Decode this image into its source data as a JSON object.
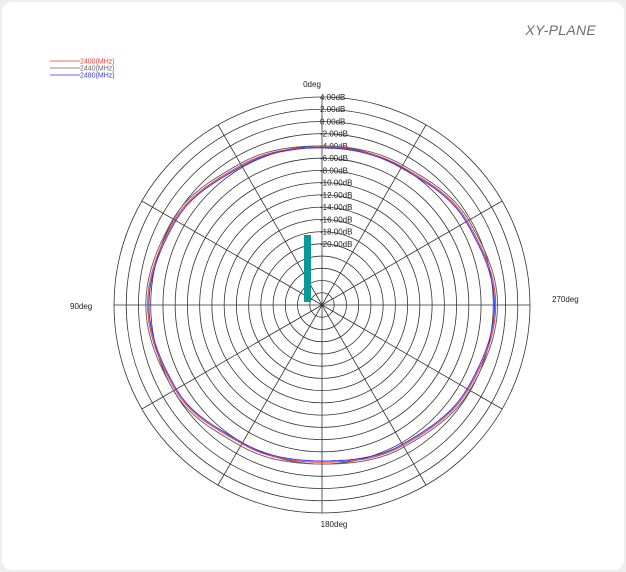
{
  "plane_title": "XY-PLANE",
  "chart_data": {
    "type": "polar",
    "r_unit": "dB",
    "rlim": [
      -30,
      4
    ],
    "ring_labels": [
      "4.00dB",
      "2.00dB",
      "0.00dB",
      "-2.00dB",
      "-4.00dB",
      "-6.00dB",
      "-8.00dB",
      "-10.00dB",
      "-12.00dB",
      "-14.00dB",
      "-16.00dB",
      "-18.00dB",
      "-20.00dB"
    ],
    "ring_values": [
      4,
      2,
      0,
      -2,
      -4,
      -6,
      -8,
      -10,
      -12,
      -14,
      -16,
      -18,
      -20,
      -22,
      -24,
      -26,
      -28
    ],
    "angle_labels": [
      {
        "deg": 0,
        "text": "0deg"
      },
      {
        "deg": 90,
        "text": "90deg"
      },
      {
        "deg": 180,
        "text": "180deg"
      },
      {
        "deg": 270,
        "text": "270deg"
      }
    ],
    "spokes_deg": [
      0,
      30,
      60,
      90,
      120,
      150,
      180,
      210,
      240,
      270,
      300,
      330
    ],
    "angles_deg": [
      0,
      30,
      60,
      90,
      120,
      150,
      180,
      210,
      240,
      270,
      300,
      330
    ],
    "series": [
      {
        "name": "2400(MHz)",
        "color": "#ff3333",
        "values": [
          -4.2,
          -3.6,
          -2.2,
          -1.5,
          -2.3,
          -3.8,
          -4.3,
          -3.5,
          -2.4,
          -1.6,
          -2.6,
          -3.9
        ]
      },
      {
        "name": "2440(MHz)",
        "color": "#666666",
        "values": [
          -4.0,
          -3.3,
          -1.9,
          -1.2,
          -2.0,
          -3.4,
          -4.0,
          -3.2,
          -2.1,
          -1.3,
          -2.3,
          -3.6
        ]
      },
      {
        "name": "2480(MHz)",
        "color": "#3333ff",
        "values": [
          -4.3,
          -3.8,
          -2.4,
          -1.7,
          -2.5,
          -4.0,
          -4.5,
          -3.7,
          -2.6,
          -1.8,
          -2.8,
          -4.1
        ]
      }
    ],
    "marker_color": "#0a9a96"
  }
}
